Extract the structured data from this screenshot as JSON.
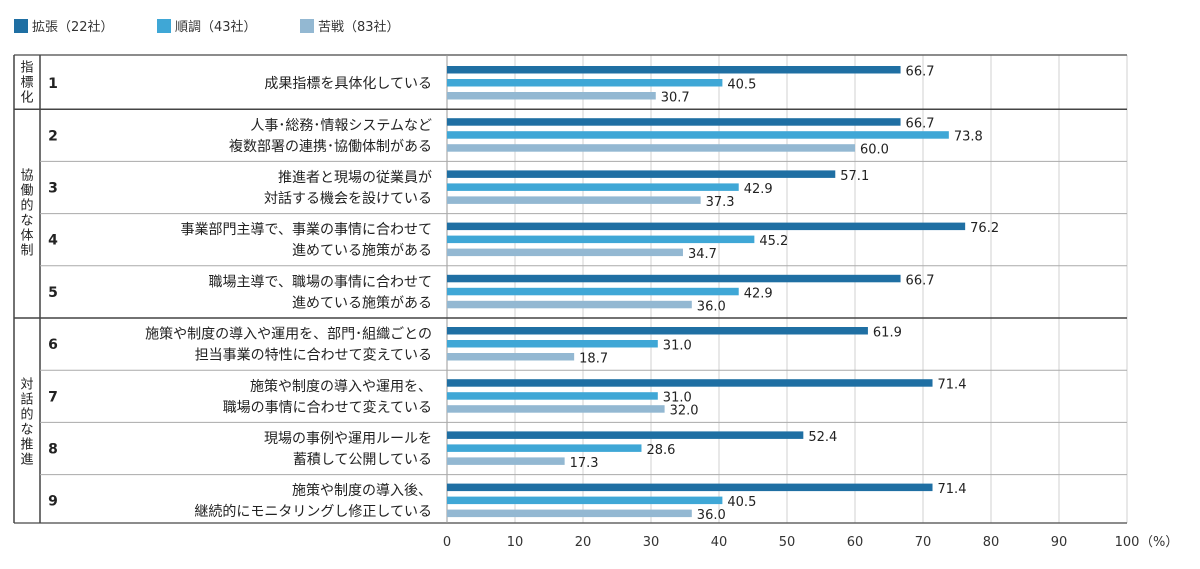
{
  "chart_data": {
    "type": "bar",
    "orientation": "horizontal",
    "unit": "（%）",
    "xlim": [
      0,
      100
    ],
    "x_ticks": [
      "0",
      "10",
      "20",
      "30",
      "40",
      "50",
      "60",
      "70",
      "80",
      "90",
      "100"
    ],
    "grid": true,
    "legend_position": "top-left",
    "series": [
      {
        "name": "拡張（22社）",
        "color": "#1f6fa3",
        "values": [
          66.7,
          66.7,
          57.1,
          76.2,
          66.7,
          61.9,
          71.4,
          52.4,
          71.4
        ]
      },
      {
        "name": "順調（43社）",
        "color": "#3fa7d6",
        "values": [
          40.5,
          73.8,
          42.9,
          45.2,
          42.9,
          31.0,
          31.0,
          28.6,
          40.5
        ]
      },
      {
        "name": "苦戦（83社）",
        "color": "#93b8d2",
        "values": [
          30.7,
          60.0,
          37.3,
          34.7,
          36.0,
          18.7,
          32.0,
          17.3,
          36.0
        ]
      }
    ],
    "groups": [
      {
        "label": [
          "指",
          "標",
          "化"
        ],
        "items": [
          0
        ]
      },
      {
        "label": [
          "協",
          "働",
          "的",
          "な",
          "体",
          "制"
        ],
        "items": [
          1,
          2,
          3,
          4
        ]
      },
      {
        "label": [
          "対",
          "話",
          "的",
          "な",
          "推",
          "進"
        ],
        "items": [
          5,
          6,
          7,
          8
        ]
      }
    ],
    "items": [
      {
        "index": "1",
        "lines": [
          "成果指標を具体化している"
        ]
      },
      {
        "index": "2",
        "lines": [
          "人事･総務･情報システムなど",
          "複数部署の連携･協働体制がある"
        ]
      },
      {
        "index": "3",
        "lines": [
          "推進者と現場の従業員が",
          "対話する機会を設けている"
        ]
      },
      {
        "index": "4",
        "lines": [
          "事業部門主導で、事業の事情に合わせて",
          "進めている施策がある"
        ]
      },
      {
        "index": "5",
        "lines": [
          "職場主導で、職場の事情に合わせて",
          "進めている施策がある"
        ]
      },
      {
        "index": "6",
        "lines": [
          "施策や制度の導入や運用を、部門･組織ごとの",
          "担当事業の特性に合わせて変えている"
        ]
      },
      {
        "index": "7",
        "lines": [
          "施策や制度の導入や運用を、",
          "職場の事情に合わせて変えている"
        ]
      },
      {
        "index": "8",
        "lines": [
          "現場の事例や運用ルールを",
          "蓄積して公開している"
        ]
      },
      {
        "index": "9",
        "lines": [
          "施策や制度の導入後、",
          "継続的にモニタリングし修正している"
        ]
      }
    ]
  }
}
